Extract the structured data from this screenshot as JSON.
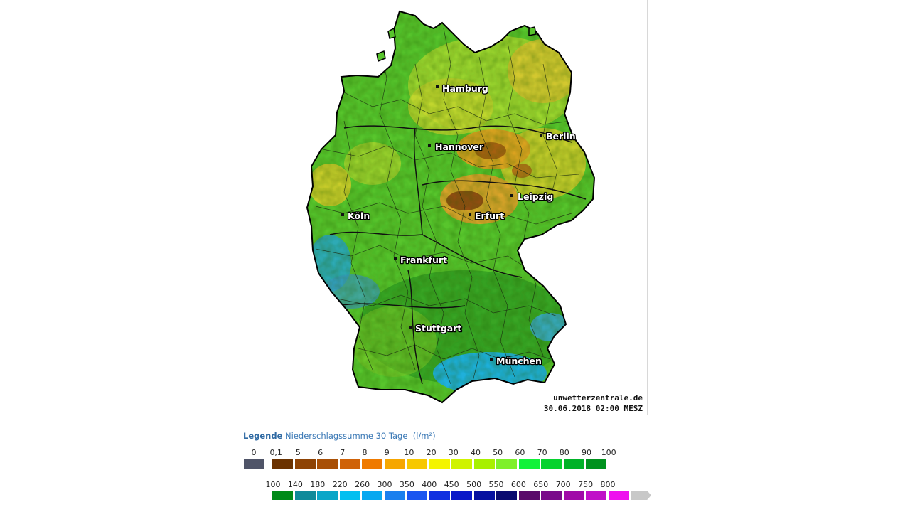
{
  "credit": {
    "site": "unwetterzentrale.de",
    "timestamp": "30.06.2018 02:00 MESZ"
  },
  "cities": [
    {
      "name": "Hamburg"
    },
    {
      "name": "Berlin"
    },
    {
      "name": "Hannover"
    },
    {
      "name": "Leipzig"
    },
    {
      "name": "Köln"
    },
    {
      "name": "Erfurt"
    },
    {
      "name": "Frankfurt"
    },
    {
      "name": "Stuttgart"
    },
    {
      "name": "München"
    }
  ],
  "legend": {
    "title_bold": "Legende",
    "title_rest": "Niederschlagssumme 30 Tage",
    "unit": "(l/m²)",
    "scale1": {
      "ticks": [
        "0",
        "0,1",
        "5",
        "6",
        "7",
        "8",
        "9",
        "10",
        "20",
        "30",
        "40",
        "50",
        "60",
        "70",
        "80",
        "90",
        "100"
      ],
      "colors": [
        "#4f5468",
        "#6b3200",
        "#8e4304",
        "#a84f05",
        "#cf6208",
        "#ef7a00",
        "#f6a600",
        "#f7c800",
        "#f4f400",
        "#cff300",
        "#a8f000",
        "#7ef02a",
        "#12f23a",
        "#06d22e",
        "#00b228",
        "#00921e"
      ]
    },
    "scale2": {
      "ticks": [
        "100",
        "140",
        "180",
        "220",
        "260",
        "300",
        "350",
        "400",
        "450",
        "500",
        "550",
        "600",
        "650",
        "700",
        "750",
        "800"
      ],
      "colors": [
        "#008a18",
        "#0f8a9a",
        "#0aa6c8",
        "#02bff0",
        "#08a8f0",
        "#1a7fee",
        "#1a55f0",
        "#1030e0",
        "#0a18c8",
        "#0610a0",
        "#0a0a70",
        "#5a0a6a",
        "#7a0a8a",
        "#a00aa8",
        "#c010c8",
        "#ee10ee",
        "#c8c8c8"
      ]
    }
  },
  "colors": {
    "drought": "#8a4a10",
    "dry": "#d8b000",
    "normal": "#50c030",
    "wet": "#20a8d8"
  }
}
